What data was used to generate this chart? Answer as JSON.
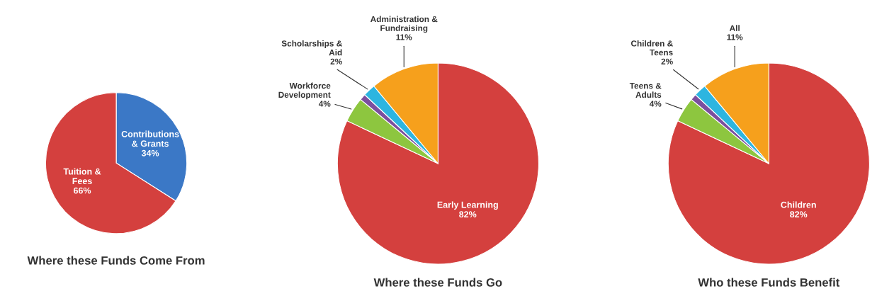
{
  "chart_data": [
    {
      "type": "pie",
      "title": "Where these Funds Come From",
      "categories": [
        "Contributions\n& Grants",
        "Tuition &\nFees"
      ],
      "values": [
        34,
        66
      ],
      "colors": [
        "#3b78c6",
        "#d4403e"
      ],
      "value_labels": [
        "34%",
        "66%"
      ],
      "legend": false
    },
    {
      "type": "pie",
      "title": "Where these Funds Go",
      "categories": [
        "Early Learning",
        "Workforce\nDevelopment",
        null,
        "Scholarships &\nAid",
        "Administration &\nFundraising"
      ],
      "values": [
        82,
        4,
        1,
        2,
        11
      ],
      "colors": [
        "#d4403e",
        "#8dc63f",
        "#7b4f9e",
        "#2db5e0",
        "#f6a01c"
      ],
      "value_labels": [
        "82%",
        "4%",
        null,
        "2%",
        "11%"
      ],
      "legend": false
    },
    {
      "type": "pie",
      "title": "Who these Funds Benefit",
      "categories": [
        "Children",
        "Teens &\nAdults",
        null,
        "Children &\nTeens",
        "All"
      ],
      "values": [
        82,
        4,
        1,
        2,
        11
      ],
      "colors": [
        "#d4403e",
        "#8dc63f",
        "#7b4f9e",
        "#2db5e0",
        "#f6a01c"
      ],
      "value_labels": [
        "82%",
        "4%",
        null,
        "2%",
        "11%"
      ],
      "legend": false
    }
  ]
}
